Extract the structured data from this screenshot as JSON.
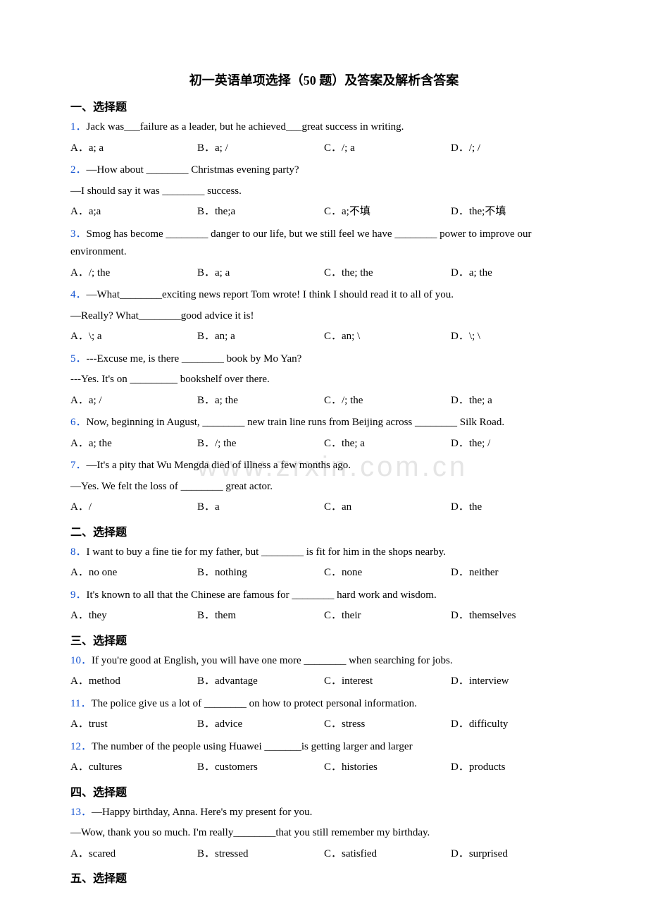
{
  "title": "初一英语单项选择（50 题）及答案及解析含答案",
  "watermark": "www.zrxin.com.cn",
  "sections": [
    {
      "header": "一、选择题",
      "questions": [
        {
          "num": "1．",
          "lines": [
            "Jack was___failure as a leader, but he achieved___great success in writing."
          ],
          "options": [
            "A．a; a",
            "B．a; /",
            "C．/; a",
            "D．/; /"
          ]
        },
        {
          "num": "2．",
          "lines": [
            "—How about ________ Christmas evening party?",
            "—I should say it was ________ success."
          ],
          "options": [
            "A．a;a",
            "B．the;a",
            "C．a;不填",
            "D．the;不填"
          ]
        },
        {
          "num": "3．",
          "lines": [
            "Smog has become ________ danger to our life, but we still feel we have ________ power to improve our environment."
          ],
          "options": [
            "A．/; the",
            "B．a; a",
            "C．the; the",
            "D．a; the"
          ]
        },
        {
          "num": "4．",
          "lines": [
            "—What________exciting news report Tom wrote! I think I should read it to all of you.",
            "—Really? What________good advice it is!"
          ],
          "options": [
            "A．\\; a",
            "B．an; a",
            "C．an; \\",
            "D．\\; \\"
          ]
        },
        {
          "num": "5．",
          "lines": [
            "---Excuse me, is there ________ book by Mo Yan?",
            "---Yes. It's on _________ bookshelf over there."
          ],
          "options": [
            "A．a; /",
            "B．a; the",
            "C．/; the",
            "D．the; a"
          ]
        },
        {
          "num": "6．",
          "lines": [
            "Now, beginning in August, ________ new train line runs from Beijing across ________ Silk Road."
          ],
          "options": [
            "A．a; the",
            "B．/; the",
            "C．the; a",
            "D．the; /"
          ]
        },
        {
          "num": "7．",
          "lines": [
            "—It's a pity that Wu Mengda died of illness a few months ago.",
            "—Yes. We felt the loss of ________ great actor."
          ],
          "options": [
            "A．/",
            "B．a",
            "C．an",
            "D．the"
          ]
        }
      ]
    },
    {
      "header": "二、选择题",
      "questions": [
        {
          "num": "8．",
          "lines": [
            "I want to buy a fine tie for my father, but ________ is fit for him in the shops nearby."
          ],
          "options": [
            "A．no one",
            "B．nothing",
            "C．none",
            "D．neither"
          ]
        },
        {
          "num": "9．",
          "lines": [
            "It's known to all that the Chinese are famous for ________ hard work and wisdom."
          ],
          "options": [
            "A．they",
            "B．them",
            "C．their",
            "D．themselves"
          ]
        }
      ]
    },
    {
      "header": "三、选择题",
      "questions": [
        {
          "num": "10．",
          "lines": [
            "If you're good at English, you will have one more ________ when searching for jobs."
          ],
          "options": [
            "A．method",
            "B．advantage",
            "C．interest",
            "D．interview"
          ]
        },
        {
          "num": "11．",
          "lines": [
            "The police give us a lot of ________ on how to protect personal information."
          ],
          "options": [
            "A．trust",
            "B．advice",
            "C．stress",
            "D．difficulty"
          ]
        },
        {
          "num": "12．",
          "lines": [
            "The number of the people using Huawei _______is getting larger and larger"
          ],
          "options": [
            "A．cultures",
            "B．customers",
            "C．histories",
            "D．products"
          ]
        }
      ]
    },
    {
      "header": "四、选择题",
      "questions": [
        {
          "num": "13．",
          "lines": [
            "—Happy birthday, Anna. Here's my present for you.",
            "—Wow, thank you so much. I'm really________that you still remember my birthday."
          ],
          "options": [
            "A．scared",
            "B．stressed",
            "C．satisfied",
            "D．surprised"
          ]
        }
      ]
    },
    {
      "header": "五、选择题",
      "questions": []
    }
  ],
  "colors": {
    "qnum": "#1050d0",
    "text": "#000000",
    "background": "#ffffff"
  }
}
